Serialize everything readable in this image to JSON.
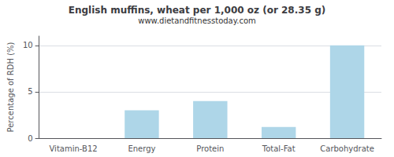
{
  "chart_data": {
    "type": "bar",
    "title": "English muffins, wheat per 1,000 oz (or 28.35 g)",
    "subtitle": "www.dietandfitnesstoday.com",
    "categories": [
      "Vitamin-B12",
      "Energy",
      "Protein",
      "Total-Fat",
      "Carbohydrate"
    ],
    "values": [
      0.0,
      3.0,
      4.0,
      1.2,
      10.0
    ],
    "color": "#aed6e8",
    "ylabel": "Percentage of RDH (%)",
    "ylim": [
      0,
      11
    ],
    "yticks": [
      0,
      5,
      10
    ],
    "grid": true
  }
}
